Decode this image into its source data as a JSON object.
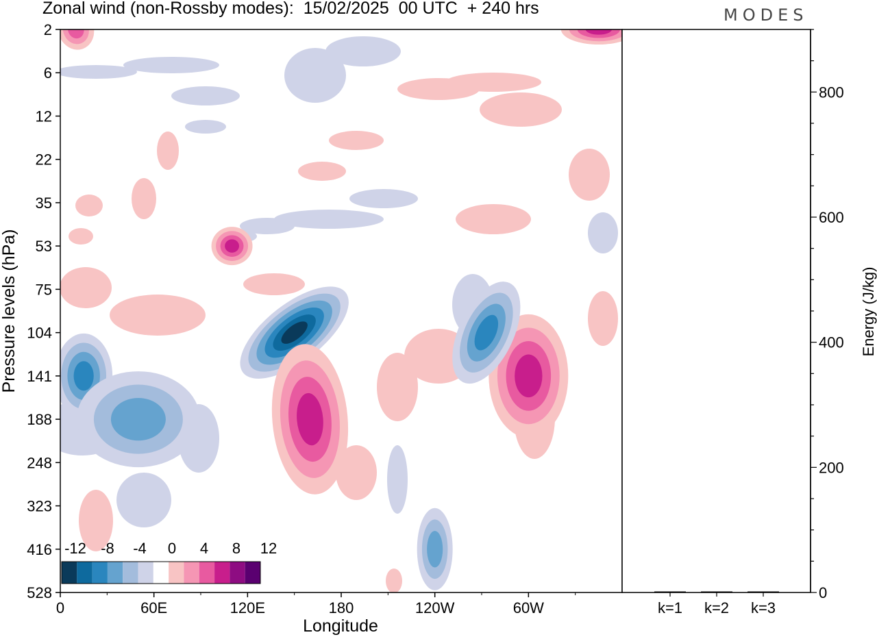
{
  "header": {
    "title": "Zonal wind (non-Rossby modes):  15/02/2025  00 UTC  + 240 hrs",
    "brand": "MODES"
  },
  "chart_data": [
    {
      "type": "heatmap",
      "xlabel": "Longitude",
      "ylabel": "Pressure levels (hPa)",
      "x_ticks": [
        "0",
        "60E",
        "120E",
        "180",
        "120W",
        "60W"
      ],
      "x_tick_degrees": [
        0,
        60,
        120,
        180,
        240,
        300
      ],
      "xlim": [
        0,
        360
      ],
      "y_ticks": [
        "2",
        "6",
        "12",
        "22",
        "35",
        "53",
        "75",
        "104",
        "141",
        "188",
        "248",
        "323",
        "416",
        "528"
      ],
      "y_scale": "ordinal-levels",
      "legend": {
        "placement": "bottom-left",
        "labels": [
          "-12",
          "-8",
          "-4",
          "0",
          "4",
          "8",
          "12"
        ],
        "levels": [
          -12,
          -10,
          -8,
          -6,
          -4,
          -2,
          2,
          4,
          6,
          8,
          10,
          12
        ],
        "colors": [
          "#0a3a5a",
          "#0e6a9e",
          "#2a86be",
          "#65a3cf",
          "#a3bcdc",
          "#cfd3e8",
          "#ffffff",
          "#f8c4c4",
          "#f596b4",
          "#e85aa0",
          "#c81e8c",
          "#8e0c82",
          "#5a0070"
        ]
      },
      "positive_color": "#f8c4c4",
      "negative_color": "#cfd3e8",
      "features": [
        {
          "sign": "positive",
          "lon": 10,
          "level": "2",
          "peak": 6
        },
        {
          "sign": "positive",
          "lon": 345,
          "level": "2",
          "peak": 9
        },
        {
          "sign": "positive",
          "lon": 110,
          "level": "53",
          "peak": 8
        },
        {
          "sign": "negative",
          "lon": 150,
          "level": "104",
          "peak": -14
        },
        {
          "sign": "negative",
          "lon": 15,
          "level": "141",
          "peak": -9
        },
        {
          "sign": "negative",
          "lon": 50,
          "level": "188",
          "peak": -7
        },
        {
          "sign": "positive",
          "lon": 160,
          "level": "188",
          "peak": 9
        },
        {
          "sign": "positive",
          "lon": 300,
          "level": "141",
          "peak": 8
        },
        {
          "sign": "negative",
          "lon": 273,
          "level": "104",
          "peak": -9
        },
        {
          "sign": "negative",
          "lon": 240,
          "level": "416",
          "peak": -6
        }
      ]
    },
    {
      "type": "bar",
      "categories": [
        "k=1",
        "k=2",
        "k=3"
      ],
      "values": [
        1.5,
        1.0,
        1.5
      ],
      "ylabel": "Energy (J/kg)",
      "y_ticks": [
        0,
        200,
        400,
        600,
        800
      ],
      "ylim": [
        0,
        900
      ]
    }
  ]
}
